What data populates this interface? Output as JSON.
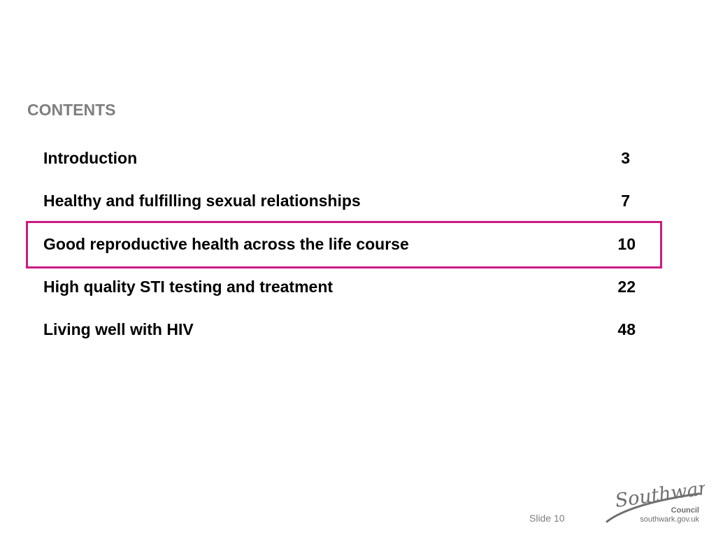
{
  "heading": "CONTENTS",
  "toc": [
    {
      "title": "Introduction",
      "page": "3"
    },
    {
      "title": "Healthy and fulfilling sexual relationships",
      "page": "7"
    },
    {
      "title": "Good reproductive health across the life course",
      "page": "10"
    },
    {
      "title": "High quality STI testing and treatment",
      "page": "22"
    },
    {
      "title": "Living well with HIV",
      "page": "48"
    }
  ],
  "highlighted_item": "Good reproductive health across the life course",
  "footer": {
    "slide_number": "Slide 10"
  },
  "logo": {
    "wordmark": "Southwark",
    "council": "Council",
    "url": "southwark.gov.uk"
  },
  "colors": {
    "heading": "#7f7f7f",
    "text": "#000000",
    "highlight_border": "#cc1a85",
    "logo": "#6f6f6f"
  }
}
